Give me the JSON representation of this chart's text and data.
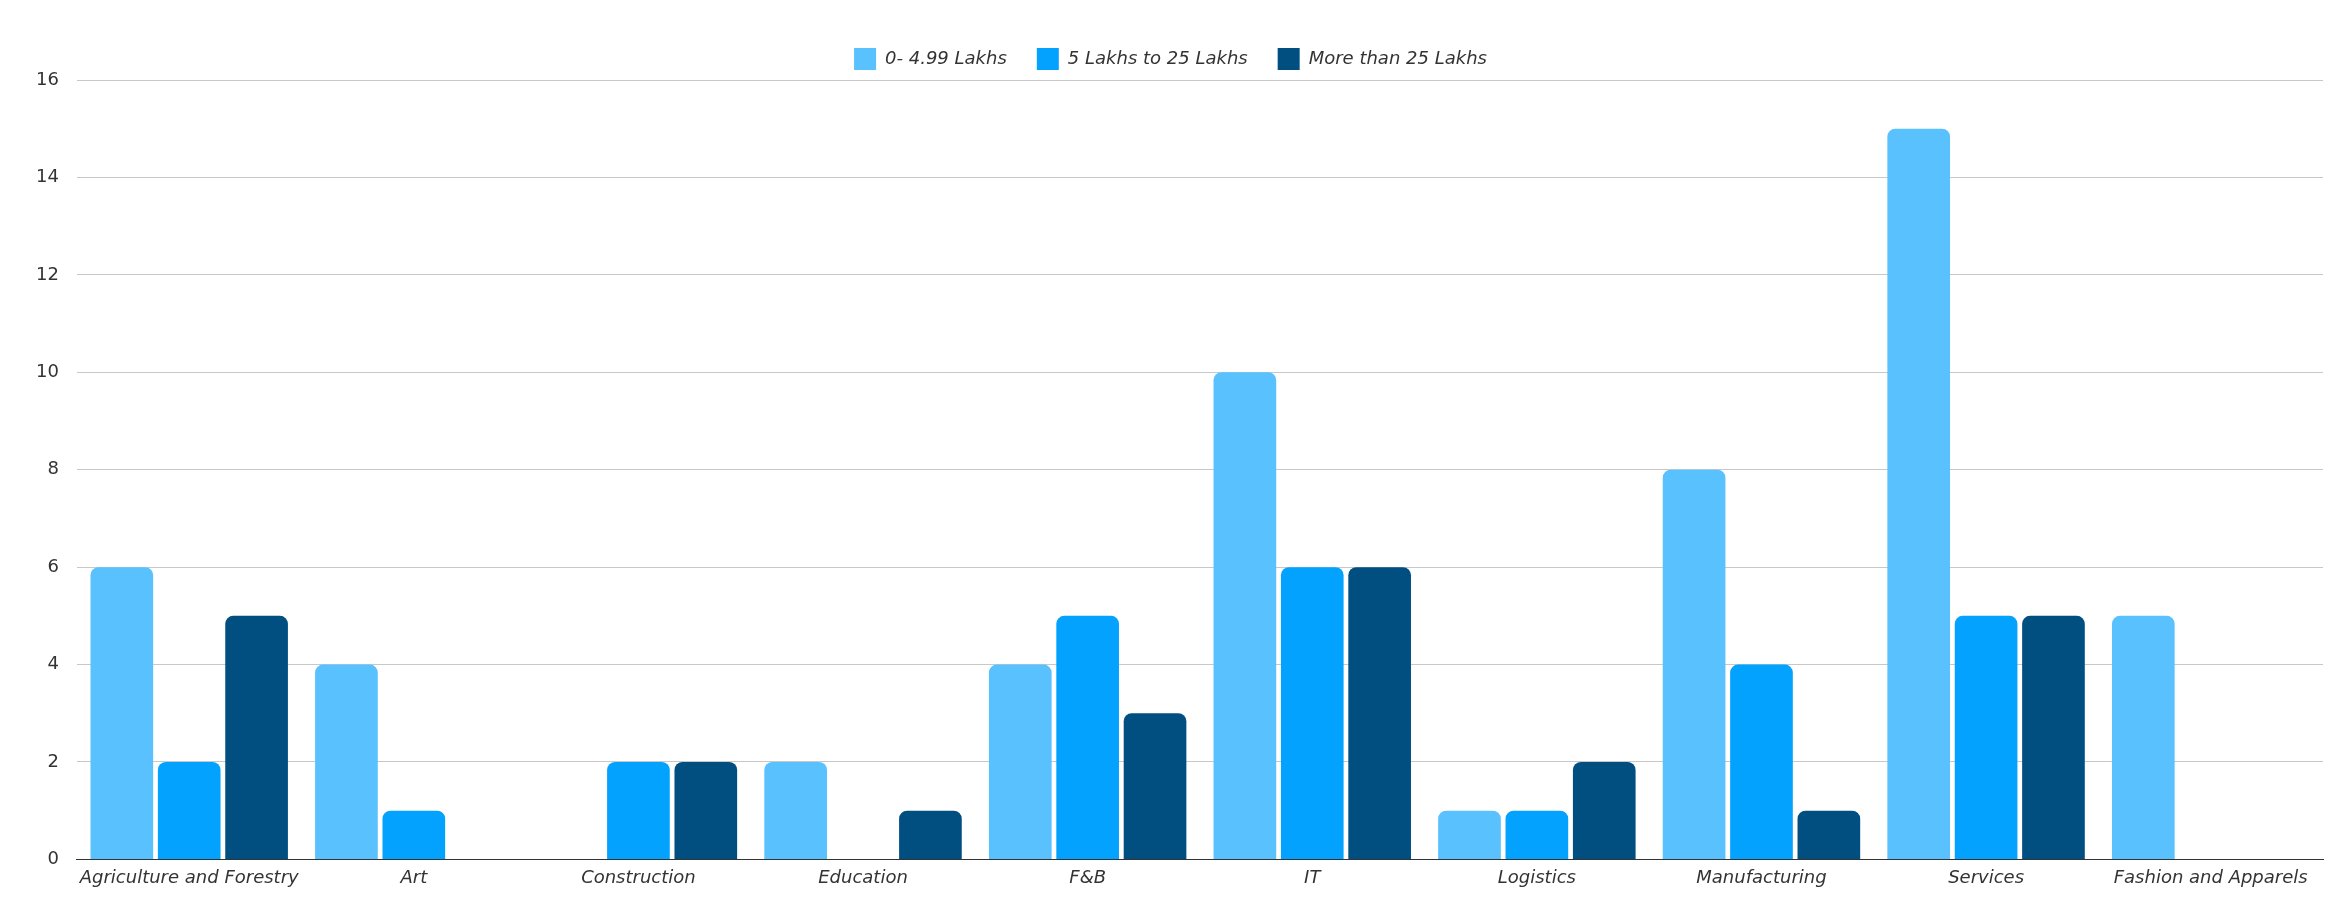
{
  "chart_data": {
    "type": "bar",
    "categories": [
      "Agriculture and Forestry",
      "Art",
      "Construction",
      "Education",
      "F&B",
      "IT",
      "Logistics",
      "Manufacturing",
      "Services",
      "Fashion and Apparels"
    ],
    "series": [
      {
        "name": "0- 4.99 Lakhs",
        "color": "#58c1fe",
        "values": [
          6,
          4,
          null,
          2,
          4,
          10,
          1,
          8,
          15,
          5
        ]
      },
      {
        "name": "5 Lakhs to 25 Lakhs",
        "color": "#03a2fe",
        "values": [
          2,
          1,
          2,
          null,
          5,
          6,
          1,
          4,
          5,
          null
        ]
      },
      {
        "name": "More than 25 Lakhs",
        "color": "#014f80",
        "values": [
          5,
          null,
          2,
          1,
          3,
          6,
          2,
          1,
          5,
          null
        ]
      }
    ],
    "ylim": [
      0,
      16
    ],
    "yticks": [
      0,
      2,
      4,
      6,
      8,
      10,
      12,
      14,
      16
    ],
    "grid": "y",
    "legend": "top"
  }
}
